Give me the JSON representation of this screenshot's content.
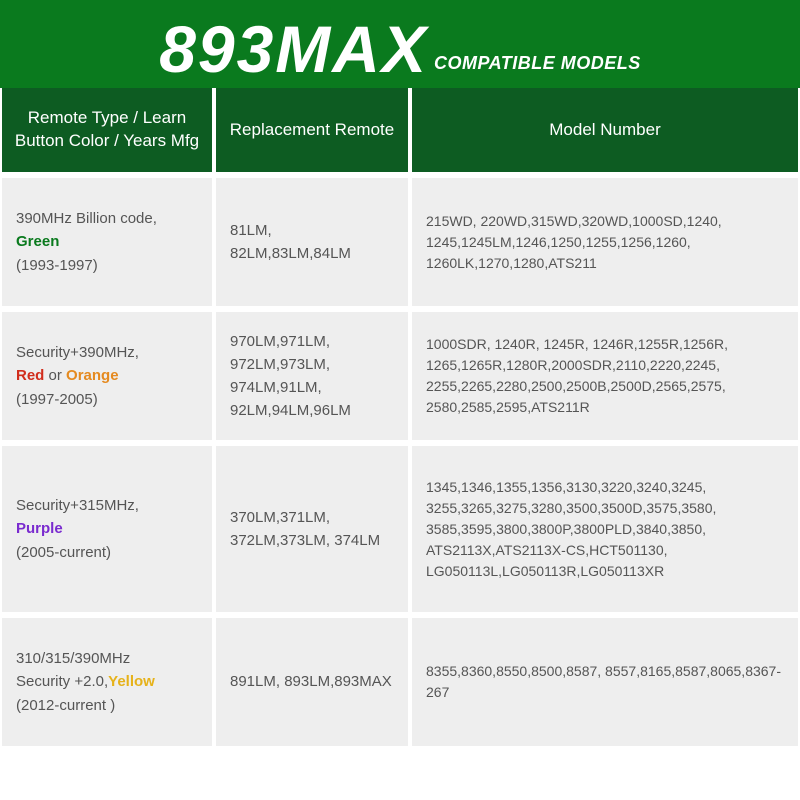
{
  "banner": {
    "big": "893MAX",
    "sub": "COMPATIBLE MODELS",
    "bg": "#0a7a1e",
    "color": "#ffffff"
  },
  "header": {
    "bg": "#0d5c22",
    "cells": [
      "Remote Type / Learn Button Color / Years Mfg",
      "Replacement Remote",
      "Model Number"
    ]
  },
  "colors": {
    "green": "#0a7a1e",
    "red": "#d12d1c",
    "orange": "#e58a1f",
    "purple": "#7a2bcf",
    "yellow": "#e6b21a",
    "grayText": "#555555",
    "cellBg": "#eeeeee"
  },
  "rows": [
    {
      "height": "row-h",
      "type": {
        "line1": "390MHz Billion code,",
        "colors": [
          {
            "text": "Green",
            "colorKey": "green"
          }
        ],
        "years": "(1993-1997)"
      },
      "replacement": "81LM, 82LM,83LM,84LM",
      "models": "215WD, 220WD,315WD,320WD,1000SD,1240, 1245,1245LM,1246,1250,1255,1256,1260, 1260LK,1270,1280,ATS211"
    },
    {
      "height": "row-h",
      "type": {
        "line1": "Security+390MHz,",
        "colors": [
          {
            "text": "Red",
            "colorKey": "red"
          },
          {
            "sep": " or "
          },
          {
            "text": "Orange",
            "colorKey": "orange"
          }
        ],
        "years": "(1997-2005)"
      },
      "replacement": "970LM,971LM, 972LM,973LM, 974LM,91LM, 92LM,94LM,96LM",
      "models": "1000SDR, 1240R, 1245R, 1246R,1255R,1256R, 1265,1265R,1280R,2000SDR,2110,2220,2245, 2255,2265,2280,2500,2500B,2500D,2565,2575, 2580,2585,2595,ATS211R"
    },
    {
      "height": "row-h-lg",
      "type": {
        "line1": "Security+315MHz,",
        "colors": [
          {
            "text": "Purple",
            "colorKey": "purple"
          }
        ],
        "years": "(2005-current)"
      },
      "replacement": "370LM,371LM, 372LM,373LM, 374LM",
      "models": "1345,1346,1355,1356,3130,3220,3240,3245, 3255,3265,3275,3280,3500,3500D,3575,3580, 3585,3595,3800,3800P,3800PLD,3840,3850, ATS2113X,ATS2113X-CS,HCT501130, LG050113L,LG050113R,LG050113XR"
    },
    {
      "height": "row-h",
      "type": {
        "line1": "310/315/390MHz",
        "line1b": "Security +2.0,",
        "inlineColor": {
          "text": "Yellow",
          "colorKey": "yellow"
        },
        "years": "(2012-current )"
      },
      "replacement": "891LM, 893LM,893MAX",
      "models": "8355,8360,8550,8500,8587, 8557,8165,8587,8065,8367-267"
    }
  ]
}
